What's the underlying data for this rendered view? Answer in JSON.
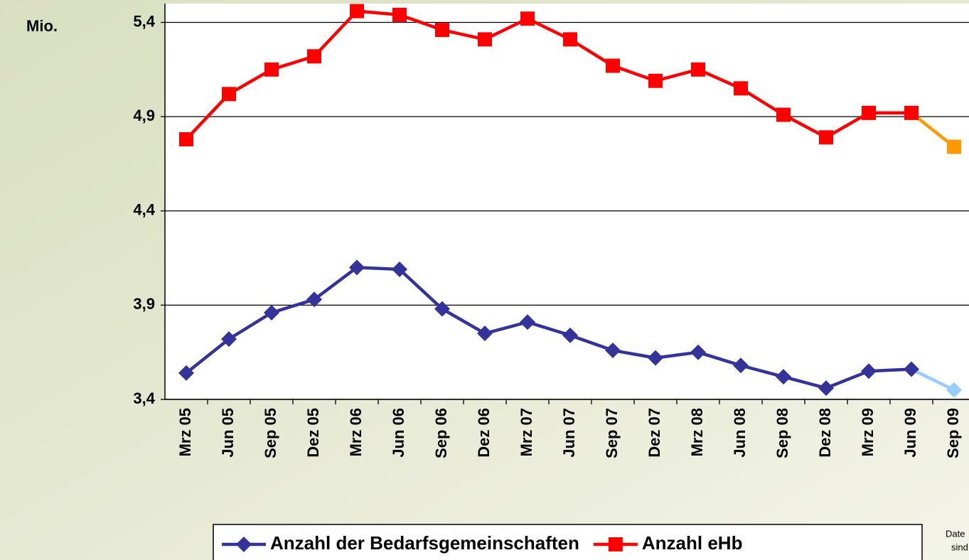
{
  "chart_data": {
    "type": "line",
    "y_unit_label": "Mio.",
    "categories": [
      "Mrz 05",
      "Jun 05",
      "Sep 05",
      "Dez 05",
      "Mrz 06",
      "Jun 06",
      "Sep 06",
      "Dez 06",
      "Mrz 07",
      "Jun 07",
      "Sep 07",
      "Dez 07",
      "Mrz 08",
      "Jun 08",
      "Sep 08",
      "Dez 08",
      "Mrz 09",
      "Jun 09",
      "Sep 09"
    ],
    "series": [
      {
        "name": "Anzahl der Bedarfsgemeinschaften",
        "color": "#333399",
        "projection_color": "#99ccff",
        "marker": "diamond",
        "values": [
          3.54,
          3.72,
          3.86,
          3.93,
          4.1,
          4.09,
          3.88,
          3.75,
          3.81,
          3.74,
          3.66,
          3.62,
          3.65,
          3.58,
          3.52,
          3.46,
          3.55,
          3.56,
          3.45
        ]
      },
      {
        "name": "Anzahl eHb",
        "color": "#ff0000",
        "projection_color": "#ff9900",
        "marker": "square",
        "values": [
          4.78,
          5.02,
          5.15,
          5.22,
          5.46,
          5.44,
          5.36,
          5.31,
          5.42,
          5.31,
          5.17,
          5.09,
          5.15,
          5.05,
          4.91,
          4.79,
          4.92,
          4.92,
          4.74
        ]
      }
    ],
    "ylim": [
      3.4,
      5.5
    ],
    "yticks": [
      {
        "value": 3.4,
        "label": "3,4"
      },
      {
        "value": 3.9,
        "label": "3,9"
      },
      {
        "value": 4.4,
        "label": "4,4"
      },
      {
        "value": 4.9,
        "label": "4,9"
      },
      {
        "value": 5.4,
        "label": "5,4"
      }
    ],
    "grid": true,
    "note": [
      "Date",
      "sind"
    ]
  }
}
